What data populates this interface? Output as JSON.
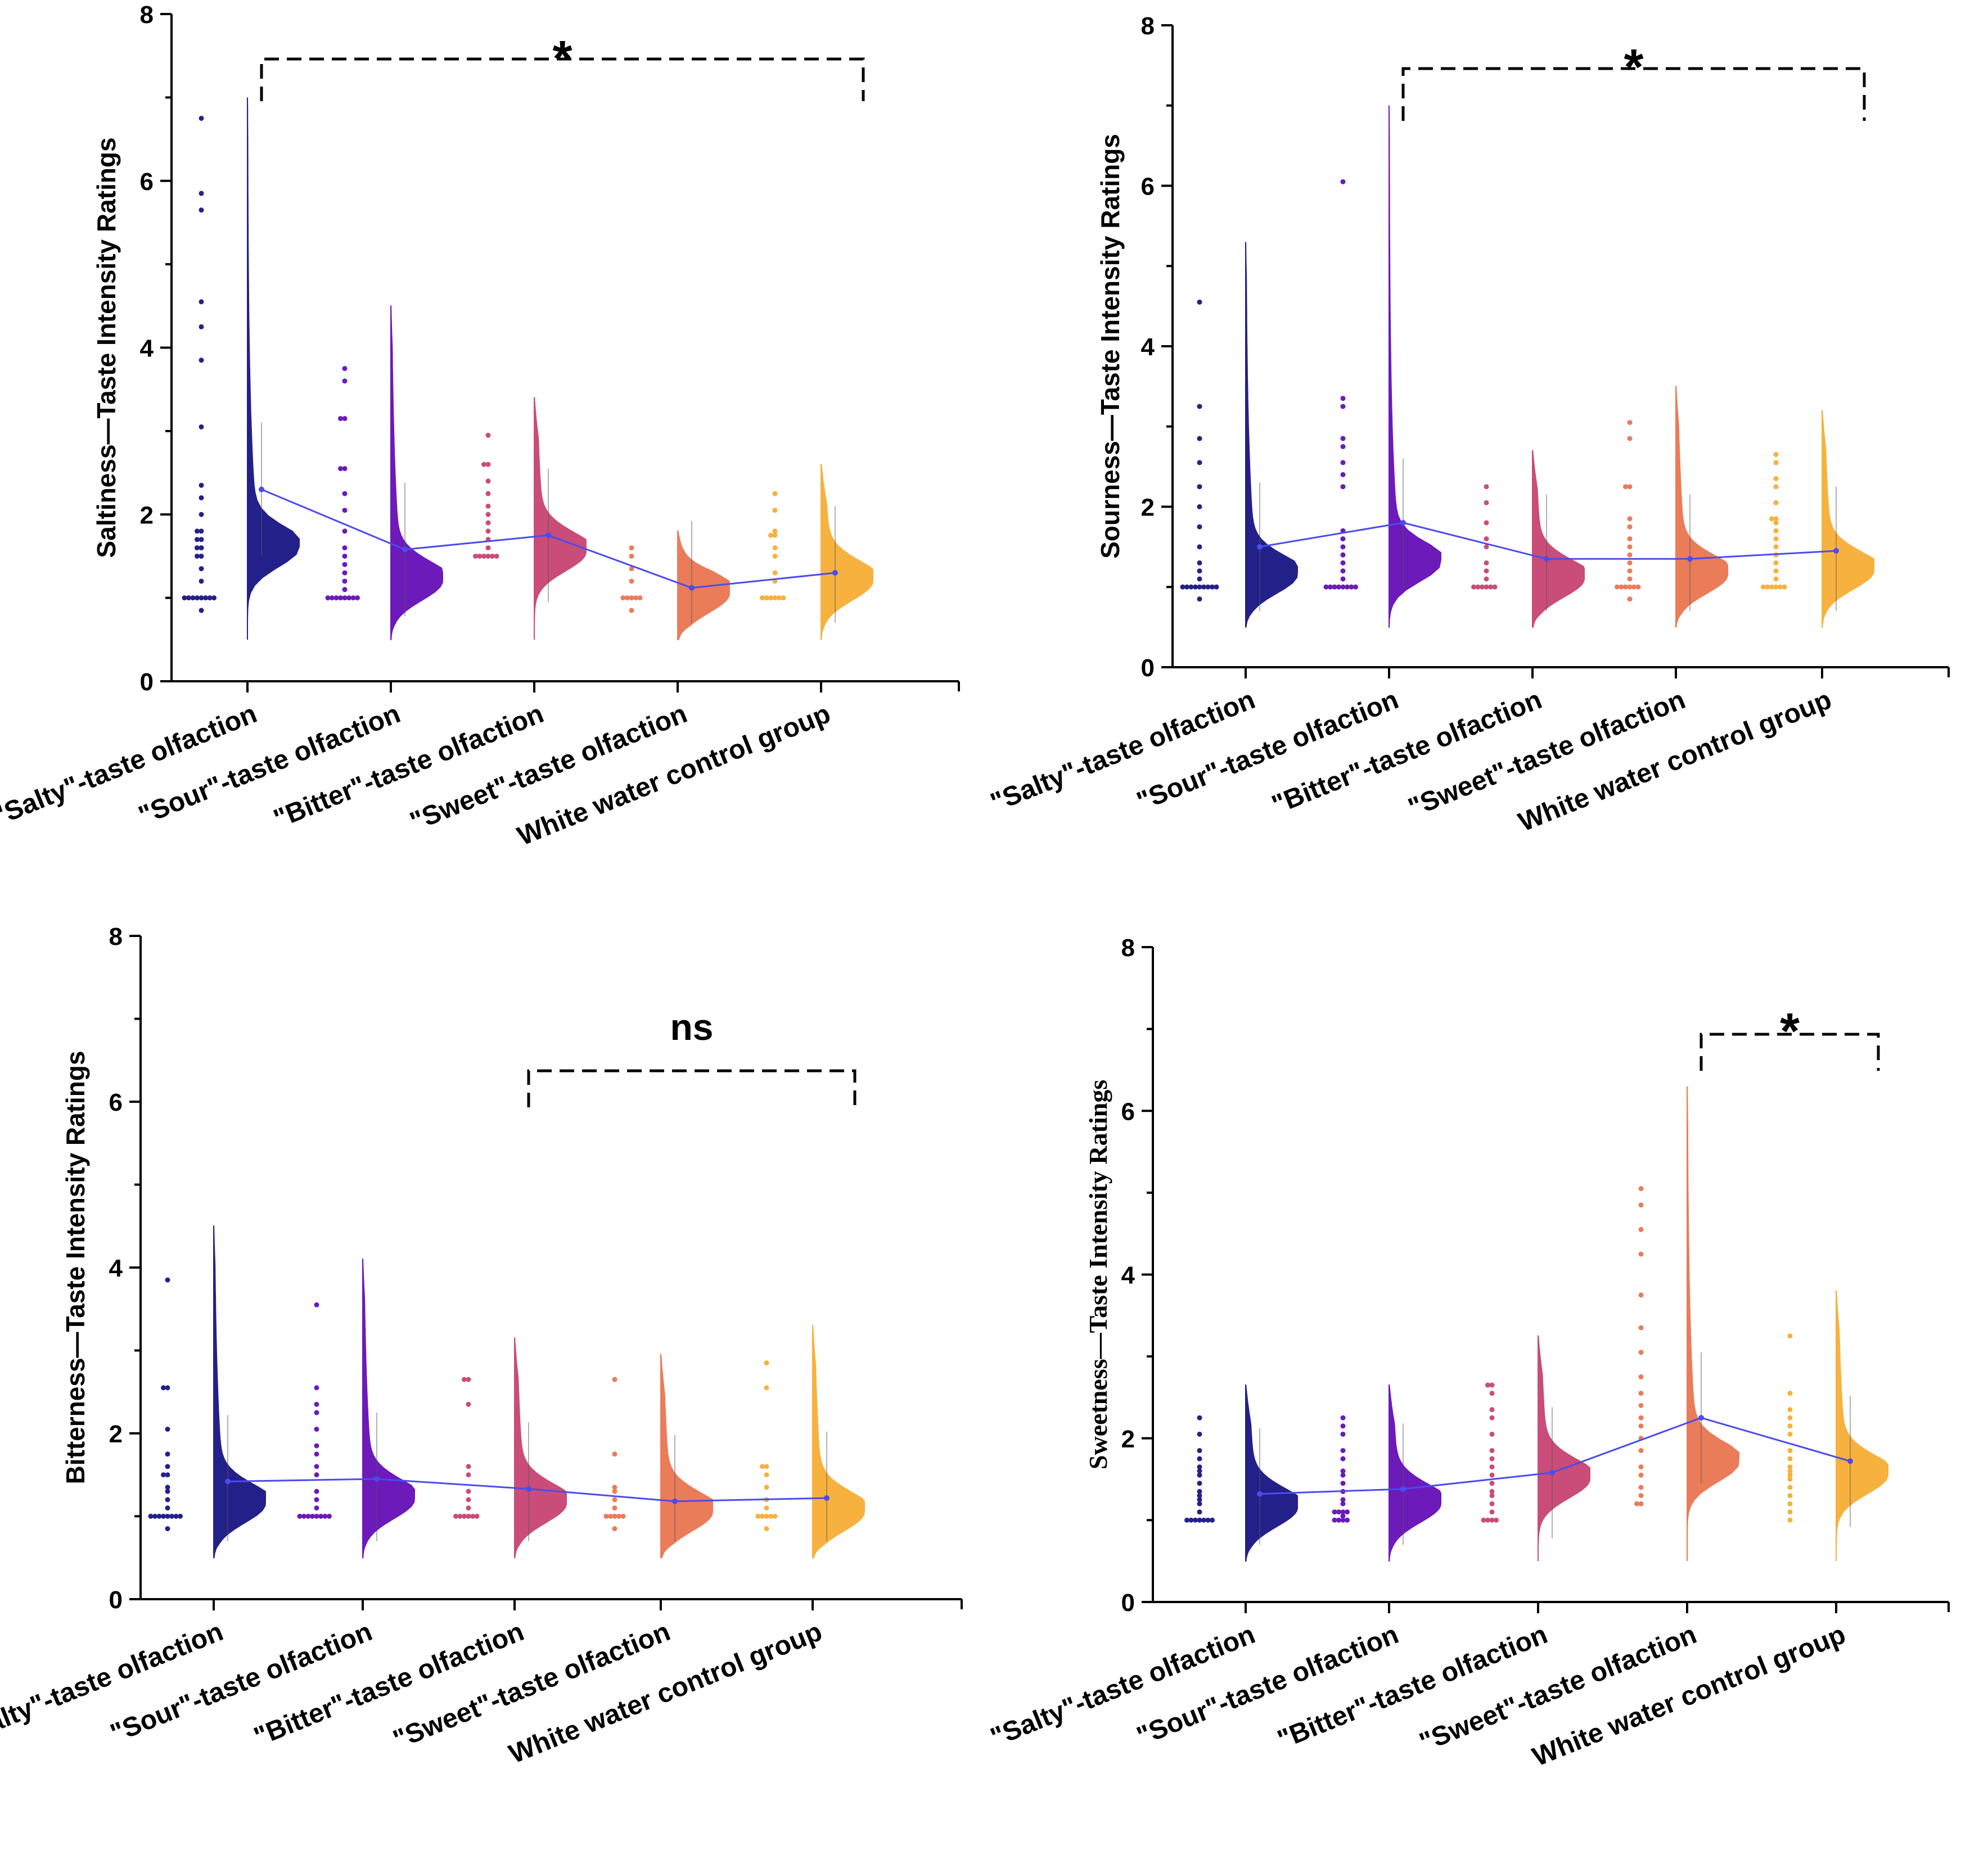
{
  "categories": [
    "\"Salty\"-taste olfaction",
    "\"Sour\"-taste olfaction",
    "\"Bitter\"-taste olfaction",
    "\"Sweet\"-taste olfaction",
    "White water control group"
  ],
  "colors": [
    "#24208a",
    "#6c1aba",
    "#c94d78",
    "#ea7c5a",
    "#f7b13e"
  ],
  "chart_data": [
    {
      "type": "raincloud",
      "ylabel": "Saltiness—Taste Intensity Ratings",
      "ylim": [
        0,
        8
      ],
      "yticks": [
        "0",
        "2",
        "4",
        "6",
        "8"
      ],
      "significance": {
        "label": "*",
        "from": 0,
        "to": 4
      },
      "means": [
        2.3,
        1.58,
        1.75,
        1.12,
        1.3
      ],
      "medians": [
        1.6,
        1.2,
        1.55,
        1.05,
        1.2
      ],
      "maxima": [
        7.0,
        4.5,
        3.4,
        1.8,
        2.6
      ],
      "points": [
        [
          0.85,
          1.0,
          1.0,
          1.0,
          1.0,
          1.0,
          1.0,
          1.0,
          1.0,
          1.2,
          1.35,
          1.5,
          1.5,
          1.6,
          1.6,
          1.7,
          1.7,
          1.8,
          1.8,
          2.0,
          2.2,
          2.35,
          3.05,
          3.85,
          4.25,
          4.55,
          5.65,
          5.85,
          6.75
        ],
        [
          1.0,
          1.0,
          1.0,
          1.0,
          1.0,
          1.0,
          1.0,
          1.0,
          1.1,
          1.2,
          1.3,
          1.4,
          1.5,
          1.6,
          1.8,
          2.05,
          2.25,
          2.55,
          2.55,
          3.15,
          3.15,
          3.6,
          3.75
        ],
        [
          1.5,
          1.5,
          1.5,
          1.5,
          1.5,
          1.5,
          1.6,
          1.7,
          1.8,
          1.9,
          2.0,
          2.1,
          2.25,
          2.4,
          2.6,
          2.6,
          2.95
        ],
        [
          0.85,
          1.0,
          1.0,
          1.0,
          1.0,
          1.0,
          1.2,
          1.35,
          1.5,
          1.6
        ],
        [
          1.0,
          1.0,
          1.0,
          1.0,
          1.0,
          1.0,
          1.2,
          1.3,
          1.5,
          1.6,
          1.75,
          1.75,
          1.8,
          2.05,
          2.25
        ]
      ]
    },
    {
      "type": "raincloud",
      "ylabel": "Sourness—Taste Intensity Ratings",
      "ylim": [
        0,
        8
      ],
      "yticks": [
        "0",
        "2",
        "4",
        "6",
        "8"
      ],
      "significance": {
        "label": "*",
        "from": 1,
        "to": 4
      },
      "means": [
        1.5,
        1.8,
        1.35,
        1.35,
        1.45
      ],
      "medians": [
        1.15,
        1.3,
        1.1,
        1.15,
        1.2
      ],
      "maxima": [
        5.3,
        7.0,
        2.7,
        3.5,
        3.2
      ],
      "points": [
        [
          0.85,
          1.0,
          1.0,
          1.0,
          1.0,
          1.0,
          1.0,
          1.0,
          1.0,
          1.0,
          1.1,
          1.2,
          1.3,
          1.5,
          1.75,
          2.0,
          2.25,
          2.55,
          2.85,
          3.25,
          4.55
        ],
        [
          1.0,
          1.0,
          1.0,
          1.0,
          1.0,
          1.0,
          1.0,
          1.0,
          1.1,
          1.2,
          1.3,
          1.4,
          1.5,
          1.6,
          1.7,
          2.25,
          2.4,
          2.55,
          2.75,
          2.85,
          3.25,
          3.35,
          6.05
        ],
        [
          1.0,
          1.0,
          1.0,
          1.0,
          1.0,
          1.0,
          1.1,
          1.2,
          1.3,
          1.5,
          1.6,
          1.8,
          2.05,
          2.25
        ],
        [
          0.85,
          1.0,
          1.0,
          1.0,
          1.0,
          1.0,
          1.0,
          1.1,
          1.2,
          1.3,
          1.4,
          1.5,
          1.6,
          1.75,
          1.85,
          2.25,
          2.25,
          2.85,
          3.05
        ],
        [
          1.0,
          1.0,
          1.0,
          1.0,
          1.0,
          1.0,
          1.1,
          1.2,
          1.3,
          1.4,
          1.5,
          1.6,
          1.7,
          1.8,
          1.85,
          1.85,
          2.05,
          2.25,
          2.35,
          2.55,
          2.65
        ]
      ]
    },
    {
      "type": "raincloud",
      "ylabel": "Bitterness—Taste Intensity Ratings",
      "ylim": [
        0,
        8
      ],
      "yticks": [
        "0",
        "2",
        "4",
        "6",
        "8"
      ],
      "significance": {
        "label": "ns",
        "from": 2,
        "to": 4
      },
      "means": [
        1.42,
        1.45,
        1.33,
        1.18,
        1.22
      ],
      "medians": [
        1.15,
        1.2,
        1.15,
        1.05,
        1.05
      ],
      "maxima": [
        4.5,
        4.1,
        3.15,
        2.95,
        3.3
      ],
      "points": [
        [
          0.85,
          1.0,
          1.0,
          1.0,
          1.0,
          1.0,
          1.0,
          1.0,
          1.0,
          1.1,
          1.2,
          1.3,
          1.35,
          1.5,
          1.5,
          1.6,
          1.75,
          2.05,
          2.55,
          2.55,
          3.85
        ],
        [
          1.0,
          1.0,
          1.0,
          1.0,
          1.0,
          1.0,
          1.0,
          1.0,
          1.1,
          1.2,
          1.3,
          1.5,
          1.6,
          1.75,
          1.85,
          2.05,
          2.25,
          2.35,
          2.55,
          3.55
        ],
        [
          1.0,
          1.0,
          1.0,
          1.0,
          1.0,
          1.0,
          1.1,
          1.2,
          1.3,
          1.5,
          1.6,
          2.35,
          2.65,
          2.65
        ],
        [
          0.85,
          1.0,
          1.0,
          1.0,
          1.0,
          1.0,
          1.1,
          1.2,
          1.3,
          1.35,
          1.75,
          2.65
        ],
        [
          0.85,
          1.0,
          1.0,
          1.0,
          1.0,
          1.0,
          1.1,
          1.2,
          1.35,
          1.5,
          1.6,
          1.6,
          2.55,
          2.85
        ]
      ]
    },
    {
      "type": "raincloud",
      "ylabel": "Sweetness—Taste Intensity Ratings",
      "ylim": [
        0,
        8
      ],
      "yticks": [
        "0",
        "2",
        "4",
        "6",
        "8"
      ],
      "significance": {
        "label": "*",
        "from": 3,
        "to": 4
      },
      "means": [
        1.32,
        1.38,
        1.58,
        2.25,
        1.72
      ],
      "medians": [
        1.15,
        1.2,
        1.5,
        1.7,
        1.55
      ],
      "maxima": [
        2.65,
        2.65,
        3.25,
        6.3,
        3.8
      ],
      "points": [
        [
          1.0,
          1.0,
          1.0,
          1.0,
          1.0,
          1.0,
          1.0,
          1.1,
          1.2,
          1.25,
          1.3,
          1.35,
          1.45,
          1.55,
          1.6,
          1.65,
          1.75,
          1.85,
          2.05,
          2.25
        ],
        [
          1.0,
          1.0,
          1.0,
          1.0,
          1.05,
          1.1,
          1.1,
          1.1,
          1.1,
          1.2,
          1.25,
          1.35,
          1.45,
          1.55,
          1.6,
          1.75,
          1.85,
          2.05,
          2.15,
          2.25
        ],
        [
          1.0,
          1.0,
          1.0,
          1.0,
          1.1,
          1.2,
          1.3,
          1.35,
          1.45,
          1.55,
          1.65,
          1.75,
          1.85,
          2.05,
          2.25,
          2.35,
          2.55,
          2.65,
          2.65
        ],
        [
          1.2,
          1.2,
          1.3,
          1.4,
          1.55,
          1.65,
          1.85,
          2.0,
          2.15,
          2.25,
          2.4,
          2.55,
          2.75,
          3.05,
          3.35,
          3.75,
          4.25,
          4.55,
          4.85,
          5.05
        ],
        [
          1.0,
          1.1,
          1.2,
          1.3,
          1.4,
          1.5,
          1.55,
          1.6,
          1.65,
          1.75,
          1.85,
          2.05,
          2.15,
          2.25,
          2.35,
          2.55,
          3.25
        ]
      ]
    }
  ]
}
